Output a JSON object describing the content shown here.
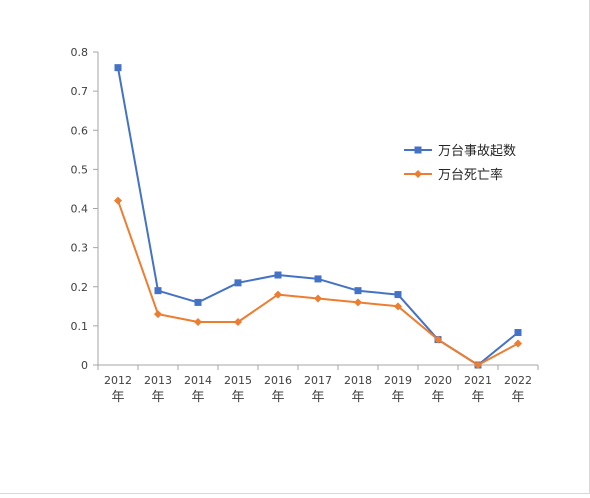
{
  "chart_data": {
    "type": "line",
    "title": "",
    "xlabel": "",
    "ylabel": "",
    "categories": [
      "2012年",
      "2013年",
      "2014年",
      "2015年",
      "2016年",
      "2017年",
      "2018年",
      "2019年",
      "2020年",
      "2021年",
      "2022年"
    ],
    "ylim": [
      0,
      0.8
    ],
    "yticks": [
      "0",
      "0.1",
      "0.2",
      "0.3",
      "0.4",
      "0.5",
      "0.6",
      "0.7",
      "0.8"
    ],
    "grid": false,
    "legend_position": "right",
    "series": [
      {
        "name": "万台事故起数",
        "values": [
          0.76,
          0.19,
          0.16,
          0.21,
          0.23,
          0.22,
          0.19,
          0.18,
          0.065,
          0.0,
          0.083
        ],
        "color": "#4472C4",
        "marker": "square"
      },
      {
        "name": "万台死亡率",
        "values": [
          0.42,
          0.13,
          0.11,
          0.11,
          0.18,
          0.17,
          0.16,
          0.15,
          0.065,
          0.0,
          0.055
        ],
        "color": "#ED7D31",
        "marker": "diamond"
      }
    ]
  }
}
